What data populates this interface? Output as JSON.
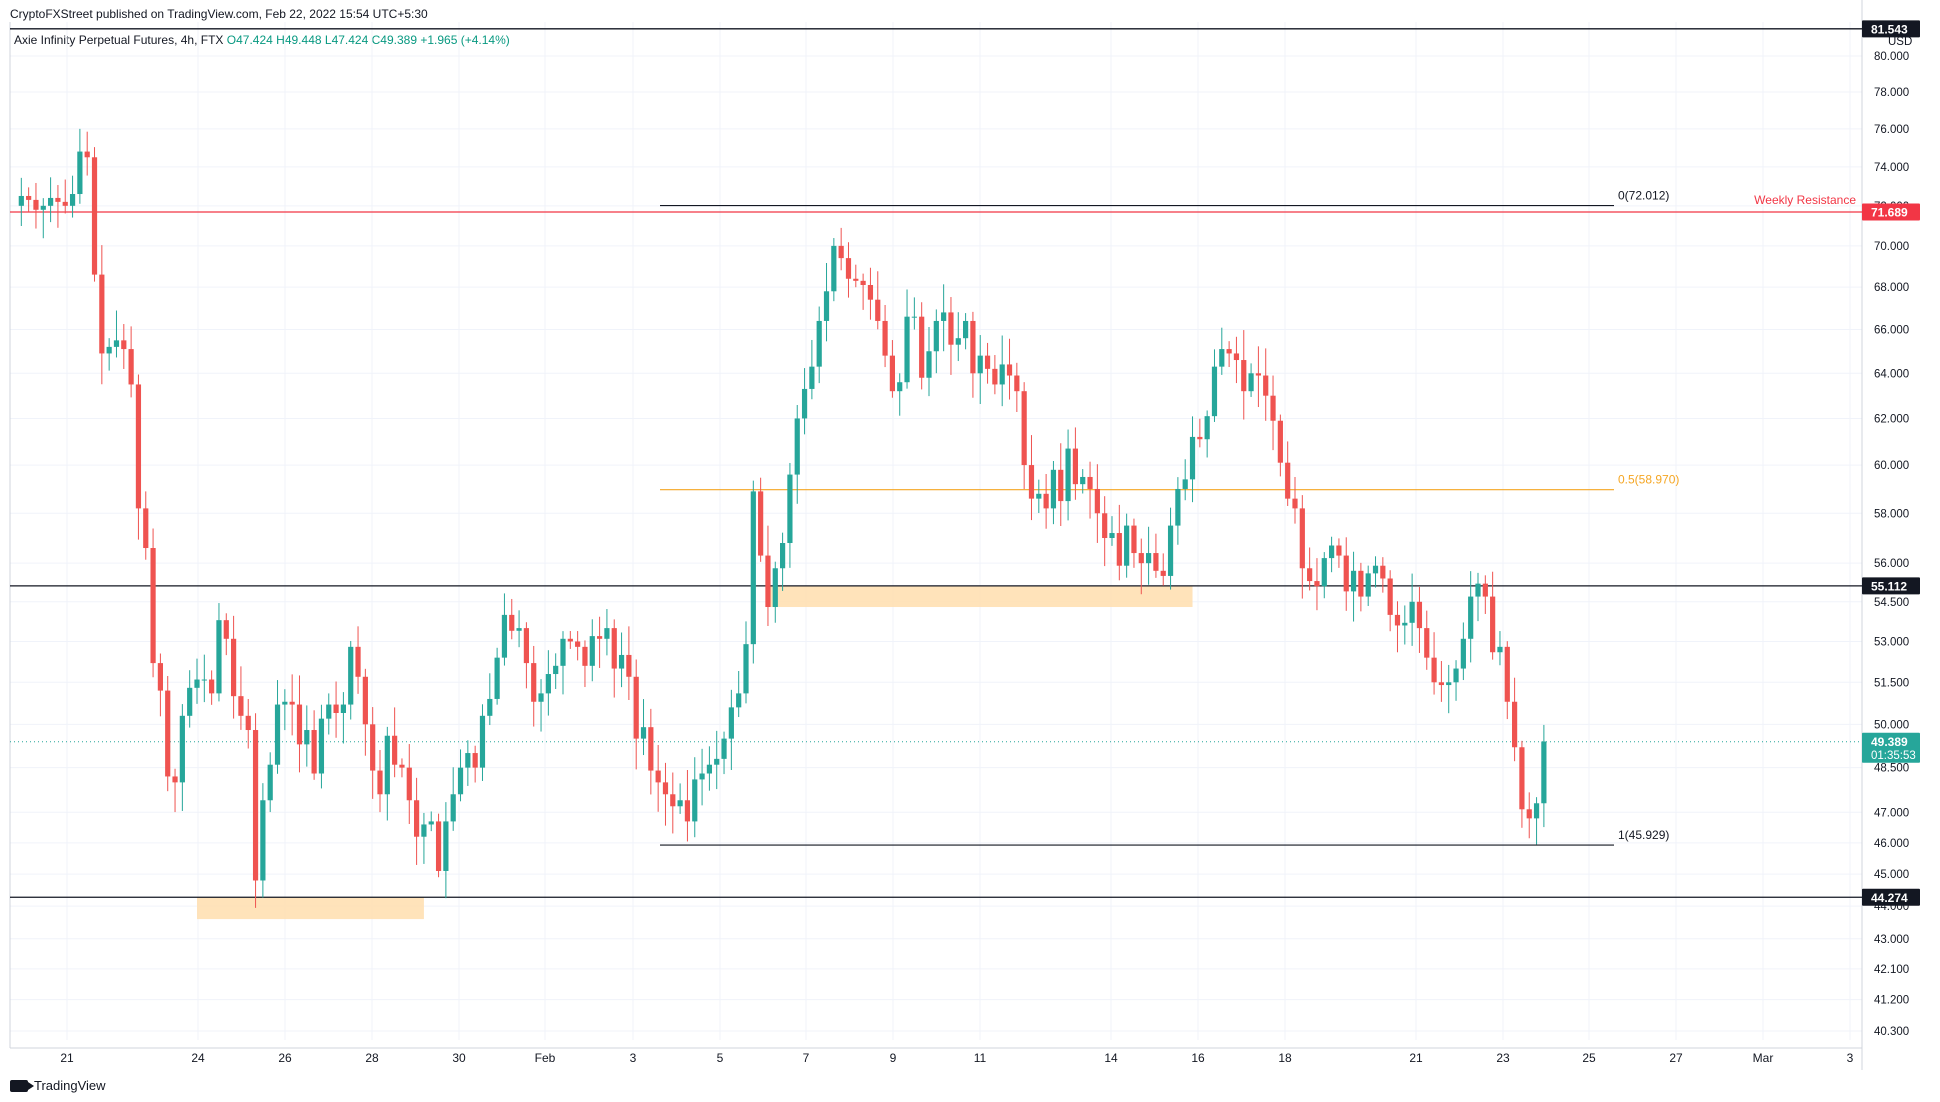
{
  "header": {
    "publisher": "CryptoFXStreet published on TradingView.com, Feb 22, 2022 15:54 UTC+5:30",
    "symbol": "Axie Infinity Perpetual Futures, 4h, FTX",
    "open": "O47.424",
    "high": "H49.448",
    "low": "L47.424",
    "close": "C49.389",
    "change": "+1.965 (+4.14%)"
  },
  "footer": {
    "brand": "TradingView"
  },
  "colors": {
    "up": "#26a69a",
    "down": "#ef5350",
    "resistance": "#f23645",
    "fib_mid": "#f5a623",
    "zone": "#ffe0b2"
  },
  "chart_data": {
    "type": "candlestick",
    "currency": "USD",
    "ylim": [
      40.0,
      81.5
    ],
    "y_scale": "log",
    "x_tick_labels": [
      "21",
      "24",
      "26",
      "28",
      "30",
      "Feb",
      "3",
      "5",
      "7",
      "9",
      "11",
      "14",
      "16",
      "18",
      "21",
      "23",
      "25",
      "27",
      "Mar",
      "3"
    ],
    "y_tick_labels": [
      "80.000",
      "78.000",
      "76.000",
      "74.000",
      "72.000",
      "70.000",
      "68.000",
      "66.000",
      "64.000",
      "62.000",
      "60.000",
      "58.000",
      "56.000",
      "54.500",
      "53.000",
      "51.500",
      "50.000",
      "48.500",
      "47.000",
      "46.000",
      "45.000",
      "44.000",
      "43.000",
      "42.100",
      "41.200",
      "40.300"
    ],
    "axis_badges": [
      {
        "label": "81.543",
        "color": "#131722"
      },
      {
        "label": "71.689",
        "color": "#f23645"
      },
      {
        "label": "55.112",
        "color": "#131722"
      },
      {
        "label": "49.389",
        "sublabel": "01:35:53",
        "color": "#26a69a"
      },
      {
        "label": "44.274",
        "color": "#131722"
      }
    ],
    "horizontal_levels": [
      {
        "value": 81.543,
        "color": "#131722",
        "label": ""
      },
      {
        "value": 71.689,
        "color": "#f23645",
        "label": "Weekly Resistance"
      },
      {
        "value": 55.112,
        "color": "#131722",
        "label": ""
      },
      {
        "value": 44.274,
        "color": "#131722",
        "label": ""
      }
    ],
    "fibonacci": [
      {
        "label": "0(72.012)",
        "value": 72.012,
        "color": "#131722"
      },
      {
        "label": "0.5(58.970)",
        "value": 58.97,
        "color": "#f5a623"
      },
      {
        "label": "1(45.929)",
        "value": 45.929,
        "color": "#131722"
      }
    ],
    "zones": [
      {
        "top": 44.27,
        "bottom": 43.6,
        "x_from_index": 25,
        "x_to_index": 56
      },
      {
        "top": 55.1,
        "bottom": 54.3,
        "x_from_index": 103,
        "x_to_index": 161
      }
    ],
    "current_price": 49.389,
    "closes": [
      72.0,
      72.5,
      72.3,
      71.8,
      72.0,
      72.4,
      72.2,
      72.0,
      72.6,
      74.8,
      74.5,
      68.6,
      64.9,
      65.2,
      65.5,
      65.1,
      63.5,
      58.2,
      56.6,
      52.2,
      51.2,
      48.2,
      48.0,
      50.3,
      51.3,
      51.6,
      51.6,
      51.1,
      53.8,
      53.1,
      51.0,
      50.3,
      49.8,
      44.8,
      47.4,
      48.6,
      50.7,
      50.8,
      50.7,
      49.3,
      49.8,
      48.3,
      50.2,
      50.7,
      50.4,
      50.7,
      52.8,
      51.7,
      50.0,
      48.4,
      47.6,
      49.6,
      48.6,
      48.5,
      47.4,
      46.2,
      46.6,
      46.7,
      45.1,
      46.7,
      47.6,
      48.5,
      49.0,
      48.5,
      50.3,
      50.9,
      52.4,
      54.0,
      53.4,
      53.5,
      52.2,
      50.8,
      51.1,
      51.8,
      52.1,
      53.1,
      53.0,
      52.8,
      52.1,
      53.2,
      53.1,
      53.5,
      52.0,
      52.5,
      51.7,
      49.5,
      49.9,
      48.4,
      48.0,
      47.6,
      47.2,
      47.4,
      46.7,
      48.1,
      48.3,
      48.6,
      48.8,
      49.5,
      50.6,
      51.1,
      52.9,
      58.9,
      56.3,
      54.3,
      55.8,
      56.8,
      59.6,
      62.0,
      63.3,
      64.3,
      66.4,
      67.8,
      70.0,
      69.4,
      68.4,
      68.3,
      68.1,
      67.4,
      66.4,
      64.8,
      63.2,
      63.6,
      66.6,
      66.6,
      63.8,
      65.0,
      66.4,
      66.8,
      65.3,
      65.6,
      66.4,
      64.0,
      64.8,
      64.2,
      63.5,
      64.4,
      63.9,
      63.2,
      60.0,
      58.6,
      58.8,
      58.2,
      59.8,
      58.5,
      60.7,
      59.2,
      59.5,
      59.0,
      58.0,
      57.0,
      57.2,
      55.9,
      57.5,
      56.4,
      56.0,
      56.4,
      55.7,
      55.5,
      57.5,
      59.0,
      59.4,
      61.2,
      61.1,
      62.1,
      64.3,
      65.1,
      64.9,
      64.6,
      63.2,
      64.0,
      63.9,
      63.0,
      61.9,
      60.1,
      58.6,
      58.2,
      55.8,
      55.3,
      55.1,
      56.2,
      56.7,
      56.3,
      54.9,
      55.7,
      54.7,
      55.6,
      55.9,
      55.4,
      54.0,
      53.6,
      53.7,
      54.5,
      53.5,
      52.4,
      51.5,
      51.4,
      51.5,
      52.0,
      53.1,
      54.7,
      55.2,
      54.7,
      52.6,
      52.8,
      50.8,
      49.2,
      47.1,
      46.8,
      47.3,
      49.4
    ]
  }
}
